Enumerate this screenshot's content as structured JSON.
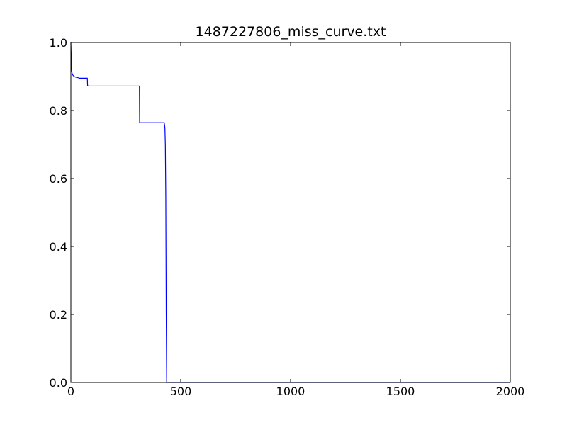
{
  "chart_data": {
    "type": "line",
    "title": "1487227806_miss_curve.txt",
    "xlabel": "",
    "ylabel": "",
    "xlim": [
      0,
      2000
    ],
    "ylim": [
      0.0,
      1.0
    ],
    "xticks": [
      0,
      500,
      1000,
      1500,
      2000
    ],
    "xtick_labels": [
      "0",
      "500",
      "1000",
      "1500",
      "2000"
    ],
    "yticks": [
      0.0,
      0.2,
      0.4,
      0.6,
      0.8,
      1.0
    ],
    "ytick_labels": [
      "0.0",
      "0.2",
      "0.4",
      "0.6",
      "0.8",
      "1.0"
    ],
    "grid": false,
    "legend": "none",
    "line_color": "#0000ff",
    "series": [
      {
        "x": [
          0,
          1,
          2,
          3,
          4,
          6,
          8,
          12,
          16,
          22,
          30,
          40,
          50,
          60,
          75,
          76,
          80,
          120,
          200,
          300,
          312,
          313,
          320,
          360,
          400,
          425,
          428,
          430,
          432,
          434,
          436,
          440,
          500,
          800,
          1200,
          1600,
          2000
        ],
        "y": [
          1.0,
          0.975,
          0.95,
          0.925,
          0.915,
          0.908,
          0.905,
          0.902,
          0.9,
          0.898,
          0.897,
          0.895,
          0.895,
          0.895,
          0.895,
          0.873,
          0.872,
          0.872,
          0.872,
          0.872,
          0.872,
          0.764,
          0.764,
          0.764,
          0.764,
          0.764,
          0.75,
          0.7,
          0.55,
          0.2,
          0.0,
          0.0,
          0.0,
          0.0,
          0.0,
          0.0,
          0.0
        ]
      }
    ]
  }
}
